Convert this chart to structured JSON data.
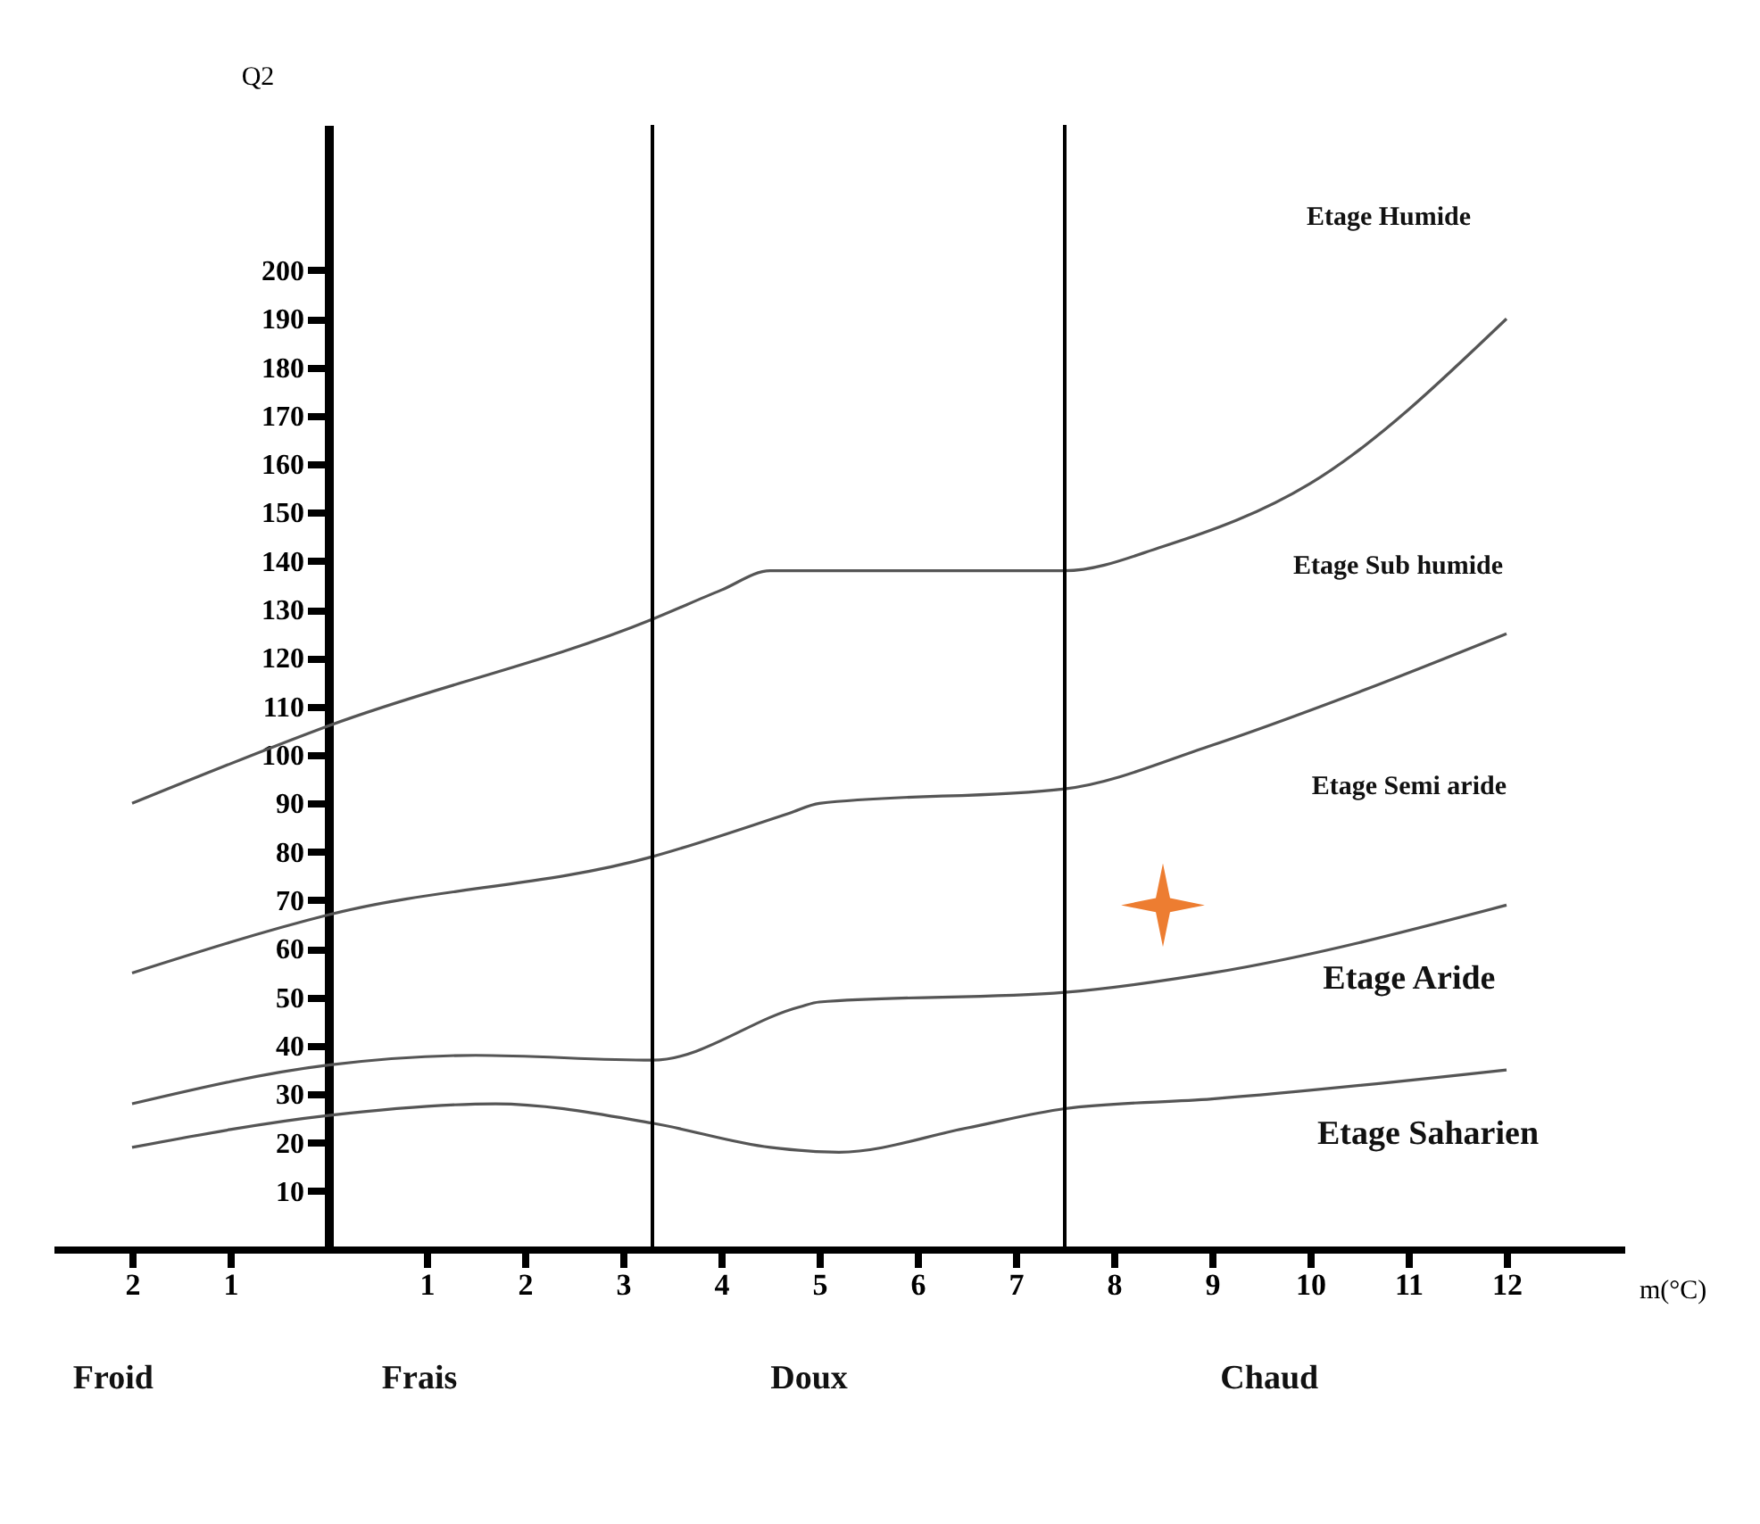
{
  "chart_data": {
    "type": "line",
    "xlabel": "m(°C)",
    "ylabel": "Q2",
    "xlim": [
      -2.8,
      13.2
    ],
    "ylim": [
      -2,
      230
    ],
    "xticks": [
      {
        "value": -2,
        "label": "2"
      },
      {
        "value": -1,
        "label": "1"
      },
      1,
      2,
      3,
      4,
      5,
      6,
      7,
      8,
      9,
      10,
      11,
      12
    ],
    "yticks": [
      10,
      20,
      30,
      40,
      50,
      60,
      70,
      80,
      90,
      100,
      110,
      120,
      130,
      140,
      150,
      160,
      170,
      180,
      190,
      200
    ],
    "grid": false,
    "line_style": "solid",
    "series": [
      {
        "color": "#555555",
        "x": [
          -2,
          0,
          3.3,
          4,
          4.5,
          5,
          7.5,
          8.5,
          10,
          12
        ],
        "values": [
          90,
          106,
          128,
          134,
          138,
          138,
          138,
          143,
          156,
          190
        ]
      },
      {
        "color": "#555555",
        "x": [
          -2,
          0,
          3.3,
          4.7,
          5,
          7.5,
          9,
          10.5,
          12
        ],
        "values": [
          55,
          67,
          79,
          88,
          90,
          93,
          102,
          113,
          125
        ]
      },
      {
        "color": "#555555",
        "x": [
          -2,
          0,
          1.5,
          3.3,
          4.8,
          5,
          7.5,
          9,
          12
        ],
        "values": [
          28,
          36,
          38,
          37,
          48,
          49,
          51,
          55,
          69
        ]
      },
      {
        "color": "#555555",
        "x": [
          -2,
          0,
          1.7,
          3.3,
          4.5,
          5.2,
          6.5,
          7.5,
          9,
          12
        ],
        "values": [
          19,
          25.6,
          28,
          24,
          19,
          18,
          23,
          27,
          29,
          35
        ]
      },
      {
        "type": "scatter",
        "marker": "star",
        "color": "#ed7d31",
        "x": [
          8.5
        ],
        "values": [
          69
        ]
      }
    ],
    "ref_lines": [
      {
        "axis": "x",
        "value": 3.3,
        "color": "#000000"
      },
      {
        "axis": "x",
        "value": 7.5,
        "color": "#000000"
      }
    ],
    "annotations": [
      "Etage Humide",
      "Etage Sub humide",
      "Etage Semi aride",
      "Etage Aride",
      "Etage Saharien",
      "Froid",
      "Frais",
      "Doux",
      "Chaud"
    ]
  }
}
